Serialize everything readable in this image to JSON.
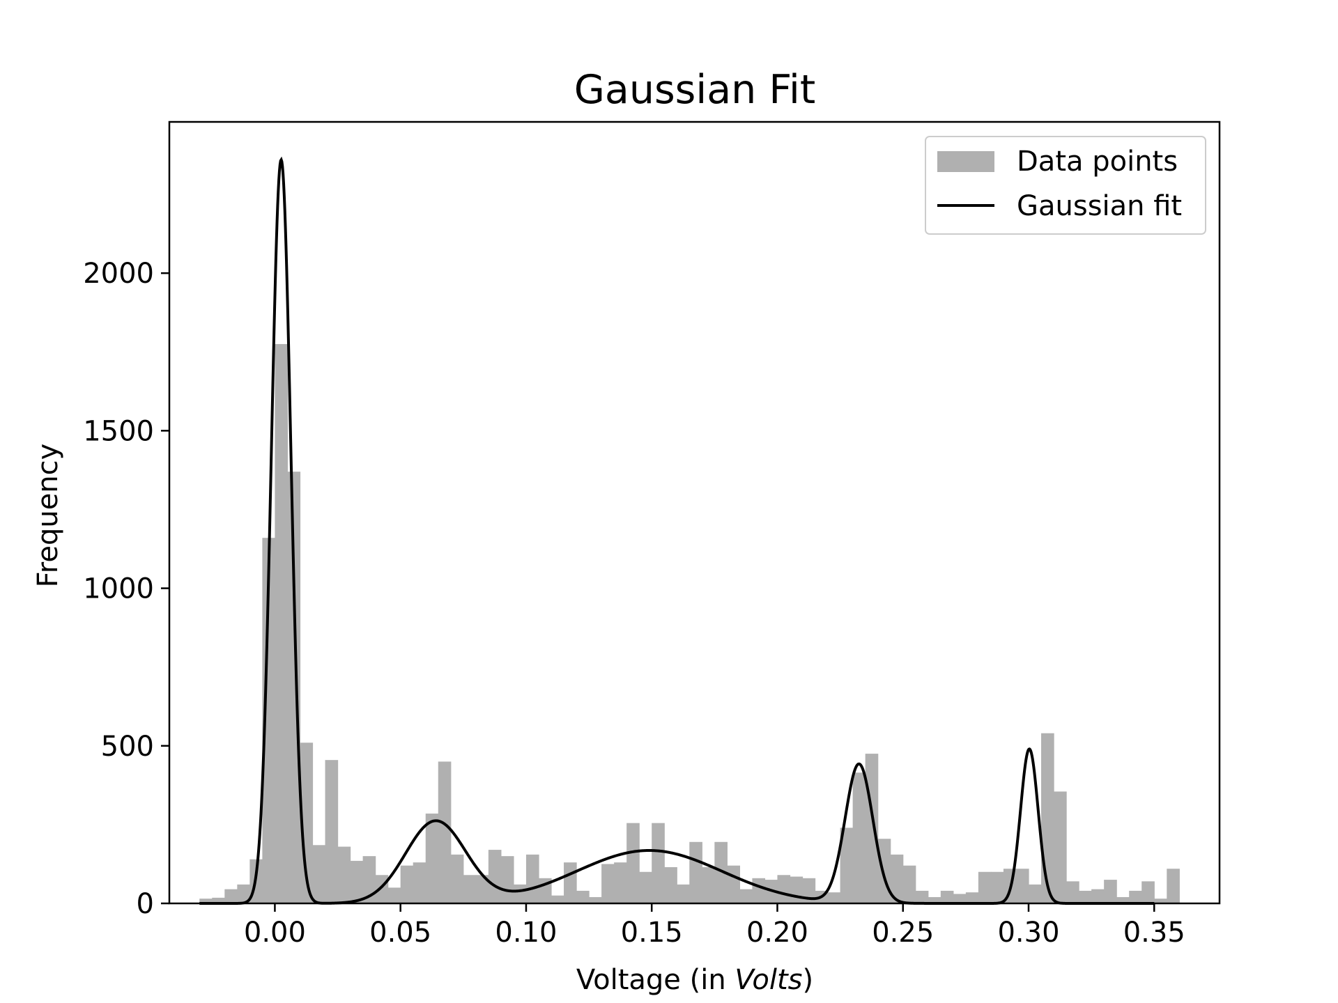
{
  "chart_data": {
    "type": "bar",
    "title": "Gaussian Fit",
    "xlabel_parts": [
      "Voltage (in ",
      "Volts",
      ")"
    ],
    "ylabel": "Frequency",
    "xlim": [
      -0.042,
      0.376
    ],
    "ylim": [
      0,
      2480
    ],
    "x_ticks": [
      0.0,
      0.05,
      0.1,
      0.15,
      0.2,
      0.25,
      0.3,
      0.35
    ],
    "x_tick_labels": [
      "0.00",
      "0.05",
      "0.10",
      "0.15",
      "0.20",
      "0.25",
      "0.30",
      "0.35"
    ],
    "y_ticks": [
      0,
      500,
      1000,
      1500,
      2000
    ],
    "y_tick_labels": [
      "0",
      "500",
      "1000",
      "1500",
      "2000"
    ],
    "legend_position": "top-right",
    "series": [
      {
        "name": "Data points",
        "type": "histogram",
        "color": "#b0b0b0",
        "x_start": -0.03,
        "bin_width": 0.005,
        "values": [
          15,
          18,
          45,
          60,
          140,
          1160,
          1775,
          1370,
          510,
          185,
          455,
          180,
          135,
          150,
          90,
          50,
          120,
          130,
          285,
          450,
          155,
          90,
          90,
          170,
          150,
          60,
          155,
          80,
          25,
          130,
          40,
          20,
          125,
          130,
          255,
          100,
          255,
          115,
          60,
          195,
          115,
          195,
          120,
          45,
          80,
          75,
          90,
          85,
          80,
          40,
          35,
          240,
          415,
          475,
          205,
          155,
          120,
          40,
          20,
          40,
          30,
          35,
          100,
          100,
          110,
          110,
          60,
          540,
          355,
          70,
          40,
          45,
          75,
          20,
          40,
          70,
          15,
          110
        ]
      },
      {
        "name": "Gaussian fit",
        "type": "line",
        "color": "#000000",
        "x_range": [
          -0.03,
          0.35
        ],
        "components": [
          {
            "amplitude": 2360,
            "mean": 0.0025,
            "sigma": 0.0039
          },
          {
            "amplitude": 260,
            "mean": 0.064,
            "sigma": 0.012
          },
          {
            "amplitude": 168,
            "mean": 0.149,
            "sigma": 0.029
          },
          {
            "amplitude": 440,
            "mean": 0.2325,
            "sigma": 0.0055
          },
          {
            "amplitude": 490,
            "mean": 0.3003,
            "sigma": 0.0035
          }
        ]
      }
    ]
  }
}
